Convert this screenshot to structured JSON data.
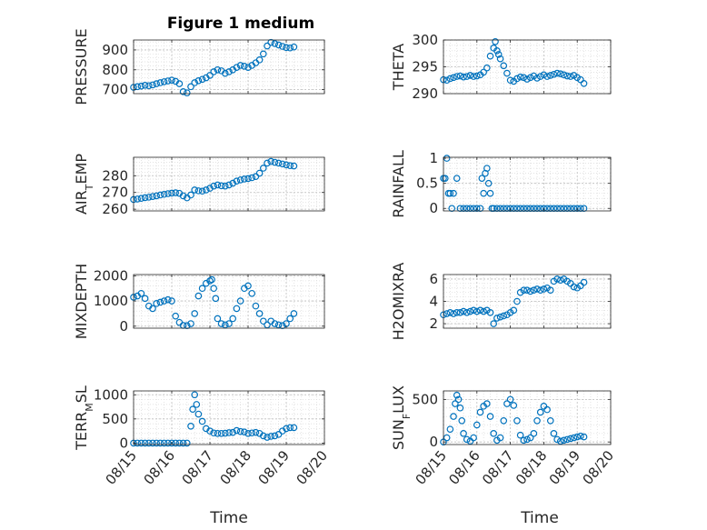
{
  "figure": {
    "title": "Figure 1 medium",
    "xlabel": "Time",
    "marker_color": "#0072BD",
    "grid": "major and minor, dotted"
  },
  "chart_data": [
    {
      "type": "scatter",
      "ylabel": "PRESSURE",
      "ylim": [
        680,
        950
      ],
      "yticks": [
        700,
        800,
        900
      ],
      "ytick_labels": [
        "700",
        "800",
        "900"
      ],
      "xlim": [
        0,
        5
      ],
      "xticks": [
        0,
        1,
        2,
        3,
        4,
        5
      ],
      "xtick_labels": [],
      "x": [
        0.0,
        0.1,
        0.2,
        0.3,
        0.4,
        0.5,
        0.6,
        0.7,
        0.8,
        0.9,
        1.0,
        1.1,
        1.2,
        1.3,
        1.4,
        1.5,
        1.6,
        1.7,
        1.8,
        1.9,
        2.0,
        2.1,
        2.2,
        2.3,
        2.4,
        2.5,
        2.6,
        2.7,
        2.8,
        2.9,
        3.0,
        3.1,
        3.2,
        3.3,
        3.4,
        3.5,
        3.6,
        3.7,
        3.8,
        3.9,
        4.0,
        4.1,
        4.2
      ],
      "y": [
        712,
        715,
        718,
        722,
        720,
        724,
        730,
        735,
        740,
        744,
        748,
        742,
        730,
        690,
        684,
        715,
        735,
        745,
        752,
        760,
        772,
        790,
        800,
        795,
        782,
        790,
        800,
        812,
        822,
        818,
        812,
        822,
        835,
        850,
        880,
        920,
        938,
        932,
        925,
        918,
        912,
        910,
        915
      ]
    },
    {
      "type": "scatter",
      "ylabel": "THETA",
      "ylim": [
        290,
        300
      ],
      "yticks": [
        290,
        295,
        300
      ],
      "ytick_labels": [
        "290",
        "295",
        "300"
      ],
      "xlim": [
        0,
        5
      ],
      "xticks": [
        0,
        1,
        2,
        3,
        4,
        5
      ],
      "xtick_labels": [],
      "x": [
        0.0,
        0.1,
        0.2,
        0.3,
        0.4,
        0.5,
        0.6,
        0.7,
        0.8,
        0.9,
        1.0,
        1.1,
        1.2,
        1.3,
        1.4,
        1.5,
        1.55,
        1.6,
        1.65,
        1.7,
        1.8,
        1.9,
        2.0,
        2.1,
        2.2,
        2.3,
        2.4,
        2.5,
        2.6,
        2.7,
        2.8,
        2.9,
        3.0,
        3.1,
        3.2,
        3.3,
        3.4,
        3.5,
        3.6,
        3.7,
        3.8,
        3.9,
        4.0,
        4.1,
        4.2
      ],
      "y": [
        292.6,
        292.5,
        292.8,
        293.0,
        293.2,
        293.3,
        293.1,
        293.2,
        293.4,
        293.2,
        293.3,
        293.5,
        294.0,
        294.8,
        297.0,
        298.5,
        299.7,
        298.0,
        297.3,
        296.5,
        295.2,
        293.8,
        292.5,
        292.3,
        292.8,
        293.1,
        293.0,
        292.7,
        293.0,
        293.3,
        292.9,
        293.2,
        293.5,
        293.2,
        293.4,
        293.6,
        293.8,
        293.7,
        293.5,
        293.3,
        293.2,
        293.4,
        293.0,
        292.6,
        291.9
      ]
    },
    {
      "type": "scatter",
      "ylabel": "AIR_TEMP",
      "ylim": [
        259,
        291
      ],
      "yticks": [
        260,
        270,
        280
      ],
      "ytick_labels": [
        "260",
        "270",
        "280"
      ],
      "xlim": [
        0,
        5
      ],
      "xticks": [
        0,
        1,
        2,
        3,
        4,
        5
      ],
      "xtick_labels": [],
      "x": [
        0.0,
        0.1,
        0.2,
        0.3,
        0.4,
        0.5,
        0.6,
        0.7,
        0.8,
        0.9,
        1.0,
        1.1,
        1.2,
        1.3,
        1.4,
        1.5,
        1.6,
        1.7,
        1.8,
        1.9,
        2.0,
        2.1,
        2.2,
        2.3,
        2.4,
        2.5,
        2.6,
        2.7,
        2.8,
        2.9,
        3.0,
        3.1,
        3.2,
        3.3,
        3.4,
        3.5,
        3.6,
        3.7,
        3.8,
        3.9,
        4.0,
        4.1,
        4.2
      ],
      "y": [
        265.8,
        266.1,
        266.5,
        266.9,
        267.2,
        267.6,
        268.0,
        268.5,
        268.9,
        269.3,
        269.6,
        269.8,
        269.5,
        268.0,
        266.8,
        268.5,
        271.5,
        271.0,
        270.8,
        271.5,
        272.5,
        273.8,
        274.5,
        274.0,
        273.8,
        274.5,
        275.5,
        276.8,
        277.5,
        278.0,
        278.3,
        278.8,
        279.5,
        281.5,
        284.5,
        287.5,
        288.5,
        288.0,
        287.5,
        287.0,
        286.5,
        286.0,
        285.8
      ]
    },
    {
      "type": "scatter",
      "ylabel": "RAINFALL",
      "ylim": [
        -0.05,
        1.02
      ],
      "yticks": [
        0,
        0.5,
        1
      ],
      "ytick_labels": [
        "0",
        "0.5",
        "1"
      ],
      "xlim": [
        0,
        5
      ],
      "xticks": [
        0,
        1,
        2,
        3,
        4,
        5
      ],
      "xtick_labels": [],
      "x": [
        0.0,
        0.05,
        0.1,
        0.15,
        0.2,
        0.25,
        0.3,
        0.4,
        0.5,
        0.6,
        0.7,
        0.8,
        0.9,
        1.0,
        1.1,
        1.15,
        1.2,
        1.25,
        1.3,
        1.35,
        1.4,
        1.45,
        1.5,
        1.6,
        1.7,
        1.8,
        1.9,
        2.0,
        2.1,
        2.2,
        2.3,
        2.4,
        2.5,
        2.6,
        2.7,
        2.8,
        2.9,
        3.0,
        3.1,
        3.2,
        3.3,
        3.4,
        3.5,
        3.6,
        3.7,
        3.8,
        3.9,
        4.0,
        4.1,
        4.2
      ],
      "y": [
        0.6,
        0.6,
        1.0,
        0.3,
        0.3,
        0,
        0.3,
        0.6,
        0,
        0,
        0,
        0,
        0,
        0,
        0,
        0.6,
        0.3,
        0.7,
        0.8,
        0.5,
        0.3,
        0,
        0,
        0,
        0,
        0,
        0,
        0,
        0,
        0,
        0,
        0,
        0,
        0,
        0,
        0,
        0,
        0,
        0,
        0,
        0,
        0,
        0,
        0,
        0,
        0,
        0,
        0,
        0,
        0
      ]
    },
    {
      "type": "scatter",
      "ylabel": "MIXDEPTH",
      "ylim": [
        -80,
        2050
      ],
      "yticks": [
        0,
        1000,
        2000
      ],
      "ytick_labels": [
        "0",
        "1000",
        "2000"
      ],
      "xlim": [
        0,
        5
      ],
      "xticks": [
        0,
        1,
        2,
        3,
        4,
        5
      ],
      "xtick_labels": [],
      "x": [
        0.0,
        0.1,
        0.2,
        0.3,
        0.4,
        0.5,
        0.6,
        0.7,
        0.8,
        0.9,
        1.0,
        1.1,
        1.2,
        1.3,
        1.4,
        1.5,
        1.6,
        1.7,
        1.8,
        1.9,
        2.0,
        2.05,
        2.1,
        2.15,
        2.2,
        2.3,
        2.4,
        2.5,
        2.6,
        2.7,
        2.8,
        2.9,
        3.0,
        3.1,
        3.2,
        3.3,
        3.4,
        3.5,
        3.6,
        3.7,
        3.8,
        3.9,
        4.0,
        4.1,
        4.2
      ],
      "y": [
        1150,
        1200,
        1300,
        1100,
        800,
        700,
        900,
        950,
        1000,
        1050,
        1000,
        400,
        150,
        30,
        20,
        100,
        500,
        1200,
        1500,
        1700,
        1800,
        1850,
        1500,
        1100,
        300,
        100,
        50,
        100,
        300,
        700,
        1000,
        1500,
        1600,
        1300,
        800,
        500,
        200,
        50,
        200,
        100,
        50,
        20,
        100,
        300,
        500
      ]
    },
    {
      "type": "scatter",
      "ylabel": "H2OMIXRA",
      "ylim": [
        1.6,
        6.4
      ],
      "yticks": [
        2,
        4,
        6
      ],
      "ytick_labels": [
        "2",
        "4",
        "6"
      ],
      "xlim": [
        0,
        5
      ],
      "xticks": [
        0,
        1,
        2,
        3,
        4,
        5
      ],
      "xtick_labels": [],
      "x": [
        0.0,
        0.1,
        0.2,
        0.3,
        0.4,
        0.5,
        0.6,
        0.7,
        0.8,
        0.9,
        1.0,
        1.1,
        1.2,
        1.3,
        1.4,
        1.5,
        1.6,
        1.7,
        1.8,
        1.9,
        2.0,
        2.1,
        2.2,
        2.3,
        2.4,
        2.5,
        2.6,
        2.7,
        2.8,
        2.9,
        3.0,
        3.1,
        3.2,
        3.3,
        3.4,
        3.5,
        3.6,
        3.7,
        3.8,
        3.9,
        4.0,
        4.1,
        4.2
      ],
      "y": [
        2.8,
        2.9,
        3.0,
        2.9,
        3.0,
        3.0,
        3.1,
        3.0,
        3.1,
        3.2,
        3.1,
        3.2,
        3.1,
        3.2,
        3.0,
        2.0,
        2.5,
        2.6,
        2.7,
        2.8,
        3.0,
        3.2,
        4.0,
        4.8,
        5.0,
        5.0,
        4.9,
        5.0,
        5.1,
        5.0,
        5.1,
        5.2,
        5.0,
        5.8,
        6.0,
        5.9,
        6.0,
        5.8,
        5.6,
        5.3,
        5.2,
        5.4,
        5.7
      ]
    },
    {
      "type": "scatter",
      "ylabel": "TERR_MSL",
      "ylim": [
        -30,
        1080
      ],
      "yticks": [
        0,
        500,
        1000
      ],
      "ytick_labels": [
        "0",
        "500",
        "1000"
      ],
      "xlim": [
        0,
        5
      ],
      "xticks": [
        0,
        1,
        2,
        3,
        4,
        5
      ],
      "xtick_labels": [
        "08/15",
        "08/16",
        "08/17",
        "08/18",
        "08/19",
        "08/20"
      ],
      "x": [
        0.0,
        0.1,
        0.2,
        0.3,
        0.4,
        0.5,
        0.6,
        0.7,
        0.8,
        0.9,
        1.0,
        1.1,
        1.2,
        1.3,
        1.4,
        1.5,
        1.55,
        1.6,
        1.65,
        1.7,
        1.8,
        1.9,
        2.0,
        2.1,
        2.2,
        2.3,
        2.4,
        2.5,
        2.6,
        2.7,
        2.8,
        2.9,
        3.0,
        3.1,
        3.2,
        3.3,
        3.4,
        3.5,
        3.6,
        3.7,
        3.8,
        3.9,
        4.0,
        4.1,
        4.2
      ],
      "y": [
        0,
        0,
        0,
        0,
        0,
        0,
        0,
        0,
        0,
        0,
        0,
        0,
        0,
        0,
        0,
        350,
        700,
        1000,
        800,
        600,
        450,
        300,
        250,
        210,
        200,
        200,
        205,
        215,
        220,
        260,
        240,
        230,
        200,
        210,
        220,
        200,
        150,
        120,
        140,
        150,
        180,
        250,
        300,
        320,
        320
      ]
    },
    {
      "type": "scatter",
      "ylabel": "SUN_FLUX",
      "ylim": [
        -30,
        600
      ],
      "yticks": [
        0,
        500
      ],
      "ytick_labels": [
        "0",
        "500"
      ],
      "xlim": [
        0,
        5
      ],
      "xticks": [
        0,
        1,
        2,
        3,
        4,
        5
      ],
      "xtick_labels": [
        "08/15",
        "08/16",
        "08/17",
        "08/18",
        "08/19",
        "08/20"
      ],
      "x": [
        0.0,
        0.1,
        0.2,
        0.3,
        0.35,
        0.4,
        0.45,
        0.5,
        0.55,
        0.6,
        0.7,
        0.8,
        0.9,
        1.0,
        1.1,
        1.2,
        1.3,
        1.4,
        1.5,
        1.6,
        1.7,
        1.8,
        1.9,
        2.0,
        2.1,
        2.2,
        2.3,
        2.4,
        2.5,
        2.6,
        2.7,
        2.8,
        2.9,
        3.0,
        3.1,
        3.2,
        3.3,
        3.4,
        3.5,
        3.6,
        3.7,
        3.8,
        3.9,
        4.0,
        4.1,
        4.2
      ],
      "y": [
        0,
        50,
        150,
        300,
        450,
        550,
        500,
        400,
        250,
        100,
        30,
        10,
        50,
        200,
        350,
        420,
        450,
        300,
        100,
        20,
        50,
        250,
        450,
        500,
        430,
        250,
        80,
        20,
        30,
        50,
        100,
        250,
        350,
        420,
        380,
        250,
        100,
        30,
        10,
        20,
        30,
        40,
        50,
        60,
        70,
        60
      ]
    }
  ]
}
